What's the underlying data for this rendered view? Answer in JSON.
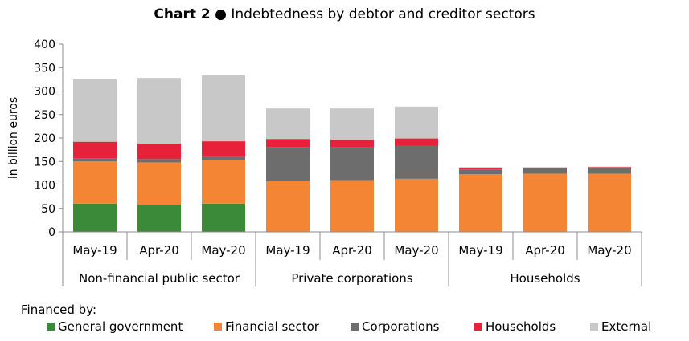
{
  "title": {
    "bold": "Chart 2",
    "sep": "●",
    "text": "Indebtedness by debtor and creditor sectors"
  },
  "legend": {
    "heading": "Financed by:",
    "items": [
      {
        "label": "General government",
        "color": "#3a8a3a"
      },
      {
        "label": "Financial sector",
        "color": "#f48534"
      },
      {
        "label": "Corporations",
        "color": "#6d6d6d"
      },
      {
        "label": "Households",
        "color": "#e8213a"
      },
      {
        "label": "External",
        "color": "#c8c8c8"
      }
    ]
  },
  "chart_data": {
    "type": "bar",
    "stacked": true,
    "ylabel": "in billion euros",
    "ylim": [
      0,
      400
    ],
    "yticks": [
      0,
      50,
      100,
      150,
      200,
      250,
      300,
      350,
      400
    ],
    "grid": false,
    "groups": [
      "Non-financial public sector",
      "Private corporations",
      "Households"
    ],
    "categories": [
      "May-19",
      "Apr-20",
      "May-20",
      "May-19",
      "Apr-20",
      "May-20",
      "May-19",
      "Apr-20",
      "May-20"
    ],
    "series": [
      {
        "name": "General government",
        "values": [
          60,
          58,
          60,
          0,
          0,
          0,
          0,
          0,
          0
        ]
      },
      {
        "name": "Financial sector",
        "values": [
          90,
          90,
          93,
          108,
          110,
          113,
          123,
          124,
          124
        ]
      },
      {
        "name": "Corporations",
        "values": [
          7,
          7,
          7,
          73,
          70,
          70,
          10,
          11,
          11
        ]
      },
      {
        "name": "Households",
        "values": [
          35,
          33,
          33,
          17,
          16,
          16,
          2,
          2,
          3
        ]
      },
      {
        "name": "External",
        "values": [
          133,
          140,
          141,
          65,
          67,
          68,
          3,
          1,
          1
        ]
      }
    ]
  }
}
